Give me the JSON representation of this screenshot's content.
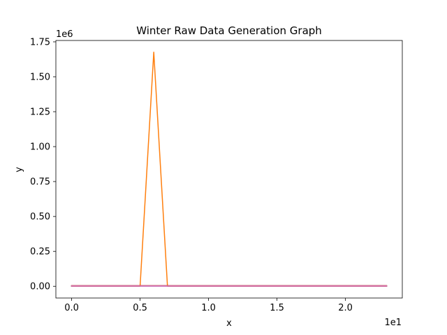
{
  "chart_data": {
    "type": "line",
    "title": "Winter Raw Data Generation Graph",
    "xlabel": "x",
    "ylabel": "y",
    "x_offset_label": "1e1",
    "y_offset_label": "1e6",
    "xlim": [
      -0.115,
      2.415
    ],
    "ylim": [
      -0.0838,
      1.7598
    ],
    "x_ticks": [
      {
        "value": 0.0,
        "label": "0.0"
      },
      {
        "value": 0.5,
        "label": "0.5"
      },
      {
        "value": 1.0,
        "label": "1.0"
      },
      {
        "value": 1.5,
        "label": "1.5"
      },
      {
        "value": 2.0,
        "label": "2.0"
      }
    ],
    "y_ticks": [
      {
        "value": 0.0,
        "label": "0.00"
      },
      {
        "value": 0.25,
        "label": "0.25"
      },
      {
        "value": 0.5,
        "label": "0.50"
      },
      {
        "value": 0.75,
        "label": "0.75"
      },
      {
        "value": 1.0,
        "label": "1.00"
      },
      {
        "value": 1.25,
        "label": "1.25"
      },
      {
        "value": 1.5,
        "label": "1.50"
      },
      {
        "value": 1.75,
        "label": "1.75"
      }
    ],
    "grid": false,
    "series": [
      {
        "color": "#1f77b4",
        "x": [
          0,
          2.3
        ],
        "y": [
          0.003,
          0.003
        ]
      },
      {
        "color": "#ff7f0e",
        "x": [
          0,
          0.5,
          0.6,
          0.7,
          2.3
        ],
        "y": [
          0.0,
          0.0,
          1.676,
          0.0,
          0.0
        ]
      },
      {
        "color": "#2ca02c",
        "x": [
          0,
          2.3
        ],
        "y": [
          0.002,
          0.002
        ]
      },
      {
        "color": "#d62728",
        "x": [
          0,
          2.3
        ],
        "y": [
          0.004,
          0.004
        ]
      },
      {
        "color": "#9467bd",
        "x": [
          0,
          2.3
        ],
        "y": [
          0.001,
          0.001
        ]
      },
      {
        "color": "#8c564b",
        "x": [
          0,
          2.3
        ],
        "y": [
          0.003,
          0.003
        ]
      },
      {
        "color": "#e377c2",
        "x": [
          0,
          2.3
        ],
        "y": [
          0.002,
          0.002
        ]
      }
    ]
  }
}
